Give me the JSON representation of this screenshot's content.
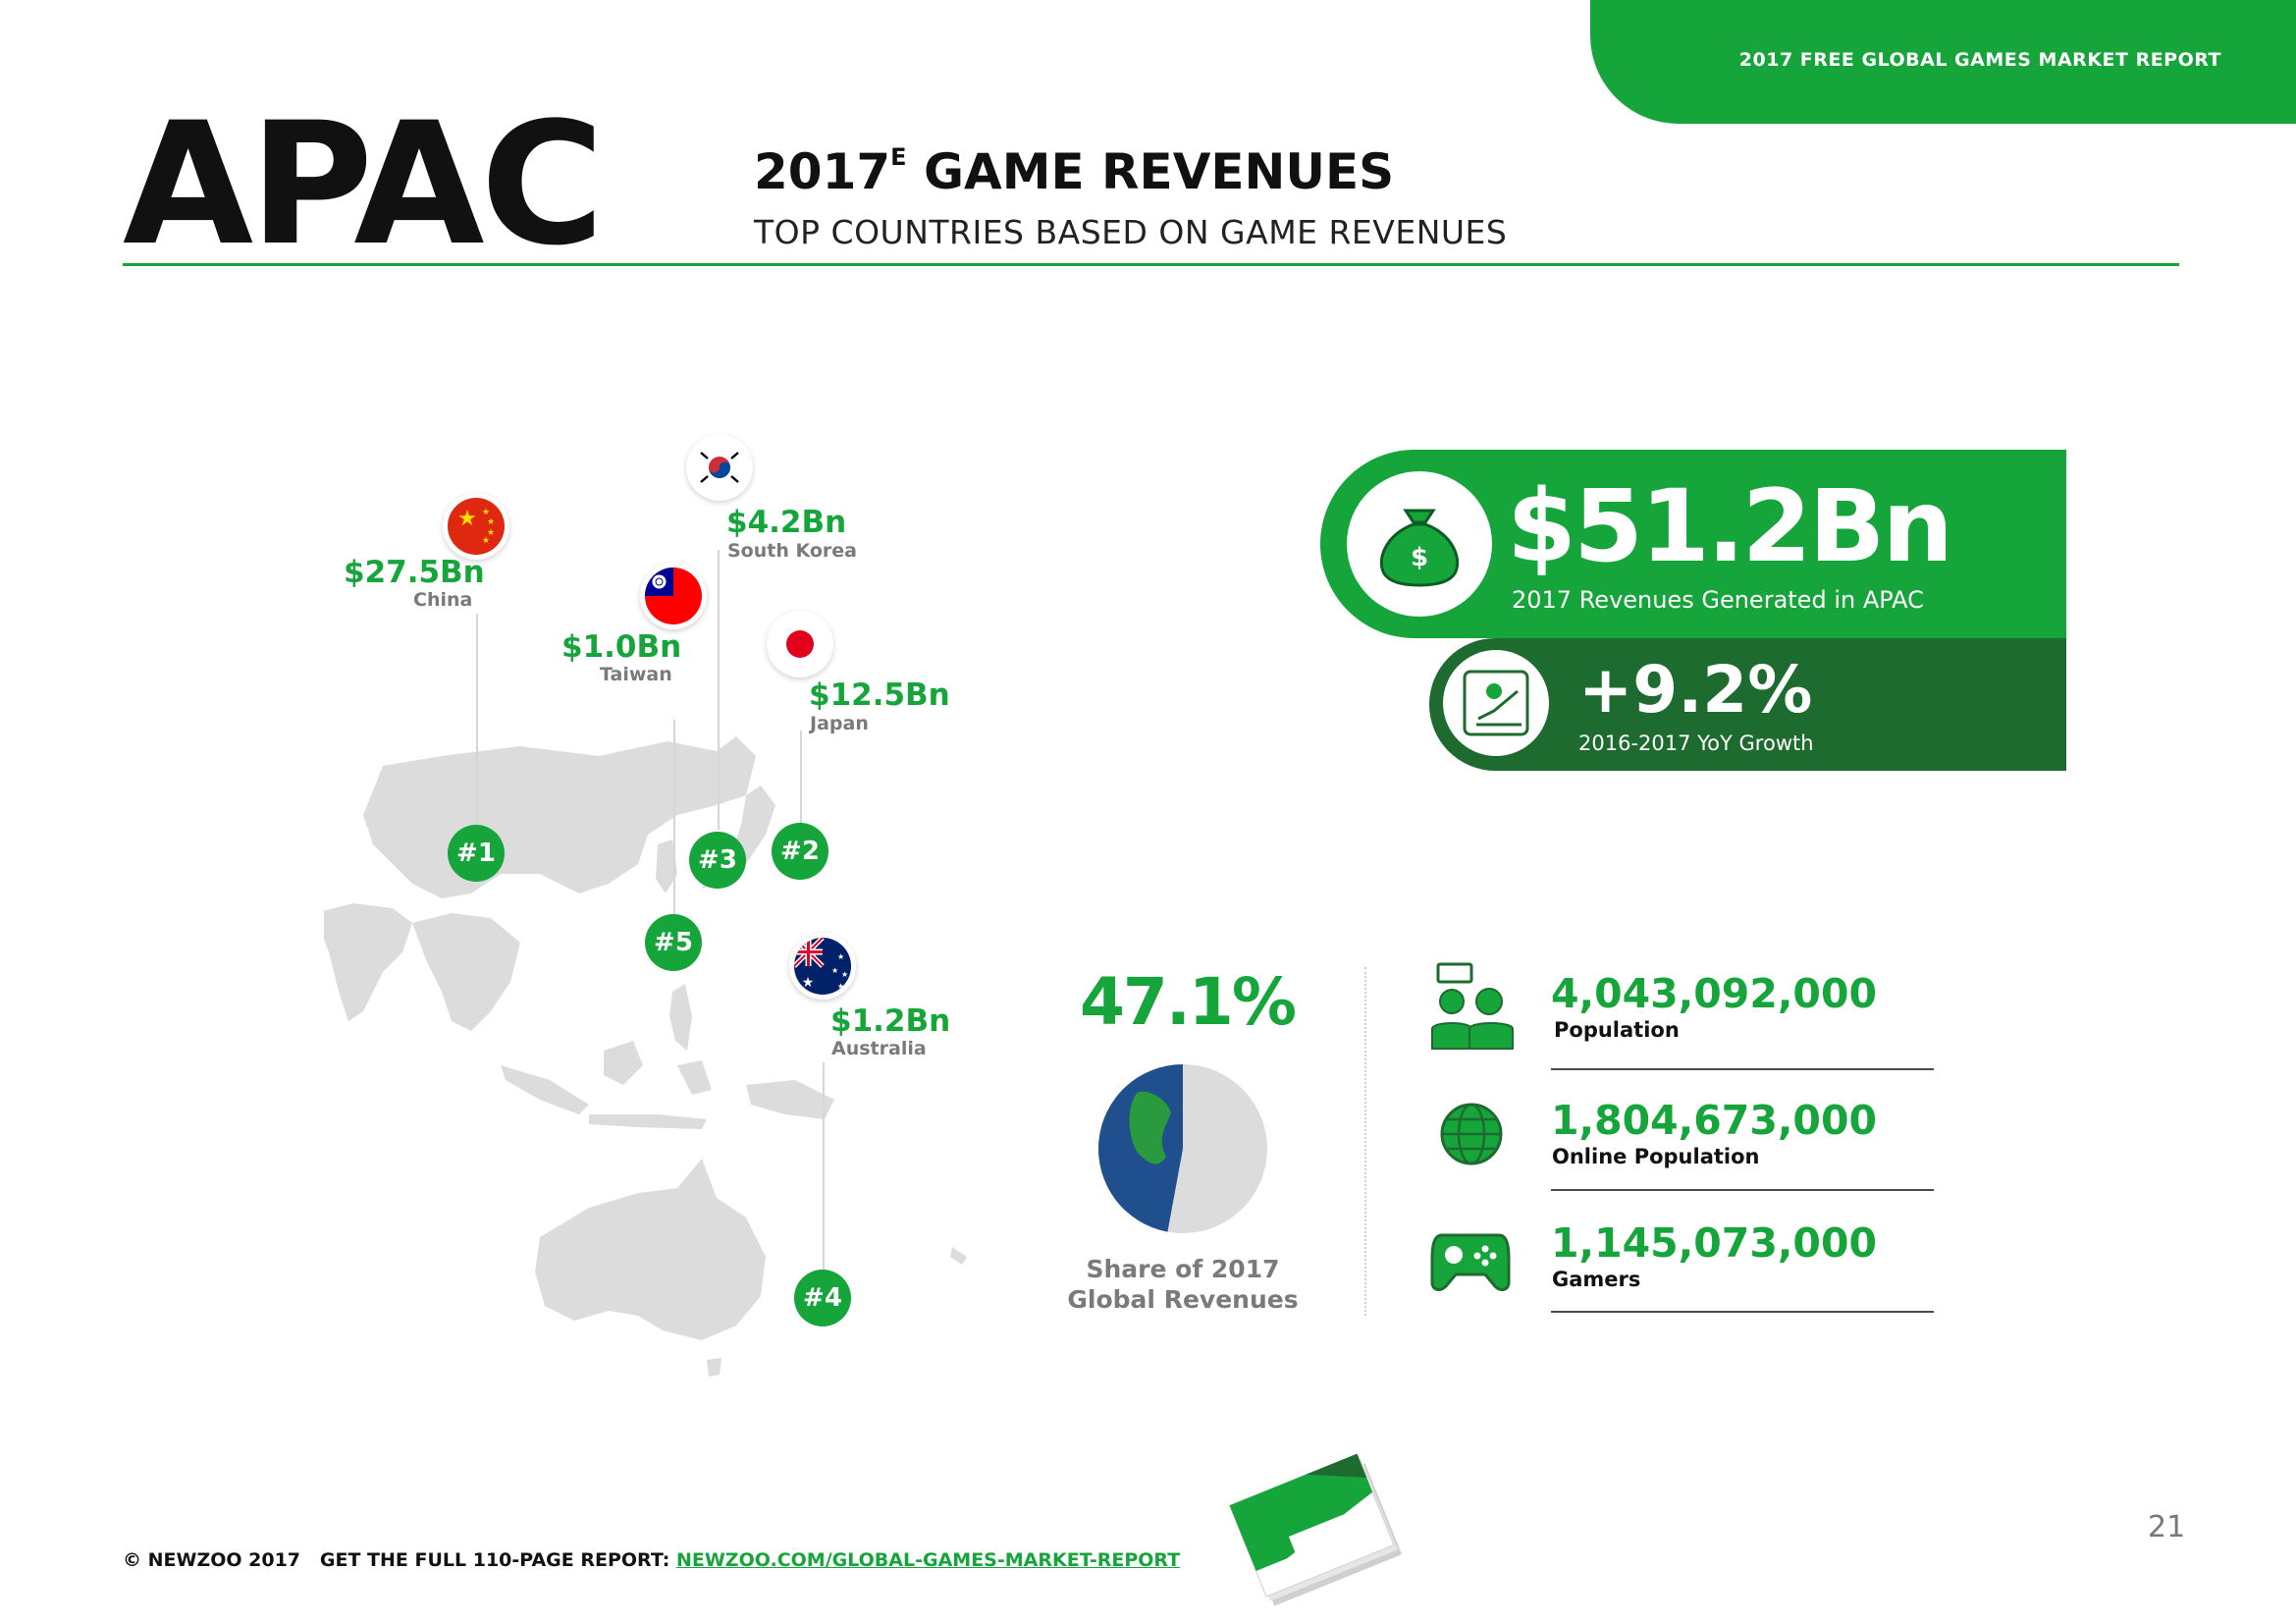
{
  "header": {
    "report_title": "2017 FREE GLOBAL GAMES MARKET REPORT",
    "region": "APAC",
    "headline_year": "2017",
    "headline_sup": "E",
    "headline_rest": " GAME REVENUES",
    "subheadline": "TOP COUNTRIES BASED ON GAME REVENUES"
  },
  "countries": [
    {
      "rank": "#1",
      "value": "$27.5Bn",
      "name": "China"
    },
    {
      "rank": "#2",
      "value": "$12.5Bn",
      "name": "Japan"
    },
    {
      "rank": "#3",
      "value": "$4.2Bn",
      "name": "South Korea"
    },
    {
      "rank": "#4",
      "value": "$1.2Bn",
      "name": "Australia"
    },
    {
      "rank": "#5",
      "value": "$1.0Bn",
      "name": "Taiwan"
    }
  ],
  "revenue": {
    "value": "$51.2Bn",
    "label": "2017 Revenues Generated in APAC",
    "currency_symbol": "$",
    "growth_value": "+9.2%",
    "growth_label": "2016-2017 YoY Growth"
  },
  "share": {
    "value": "47.1%",
    "fraction": 0.471,
    "label_line1": "Share of 2017",
    "label_line2": "Global Revenues"
  },
  "stats": [
    {
      "value": "4,043,092,000",
      "label": "Population",
      "icon": "people-icon"
    },
    {
      "value": "1,804,673,000",
      "label": "Online Population",
      "icon": "globe-icon"
    },
    {
      "value": "1,145,073,000",
      "label": "Gamers",
      "icon": "gamepad-icon"
    }
  ],
  "footer": {
    "copyright": "© NEWZOO 2017",
    "cta": "GET THE FULL 110-PAGE REPORT:",
    "link": "NEWZOO.COM/GLOBAL-GAMES-MARKET-REPORT",
    "page_number": "21"
  },
  "colors": {
    "brand_green": "#16a53a",
    "dark_green": "#1d6b2f",
    "map_gray": "#dcdcdc",
    "globe_blue": "#1f4f8c"
  }
}
